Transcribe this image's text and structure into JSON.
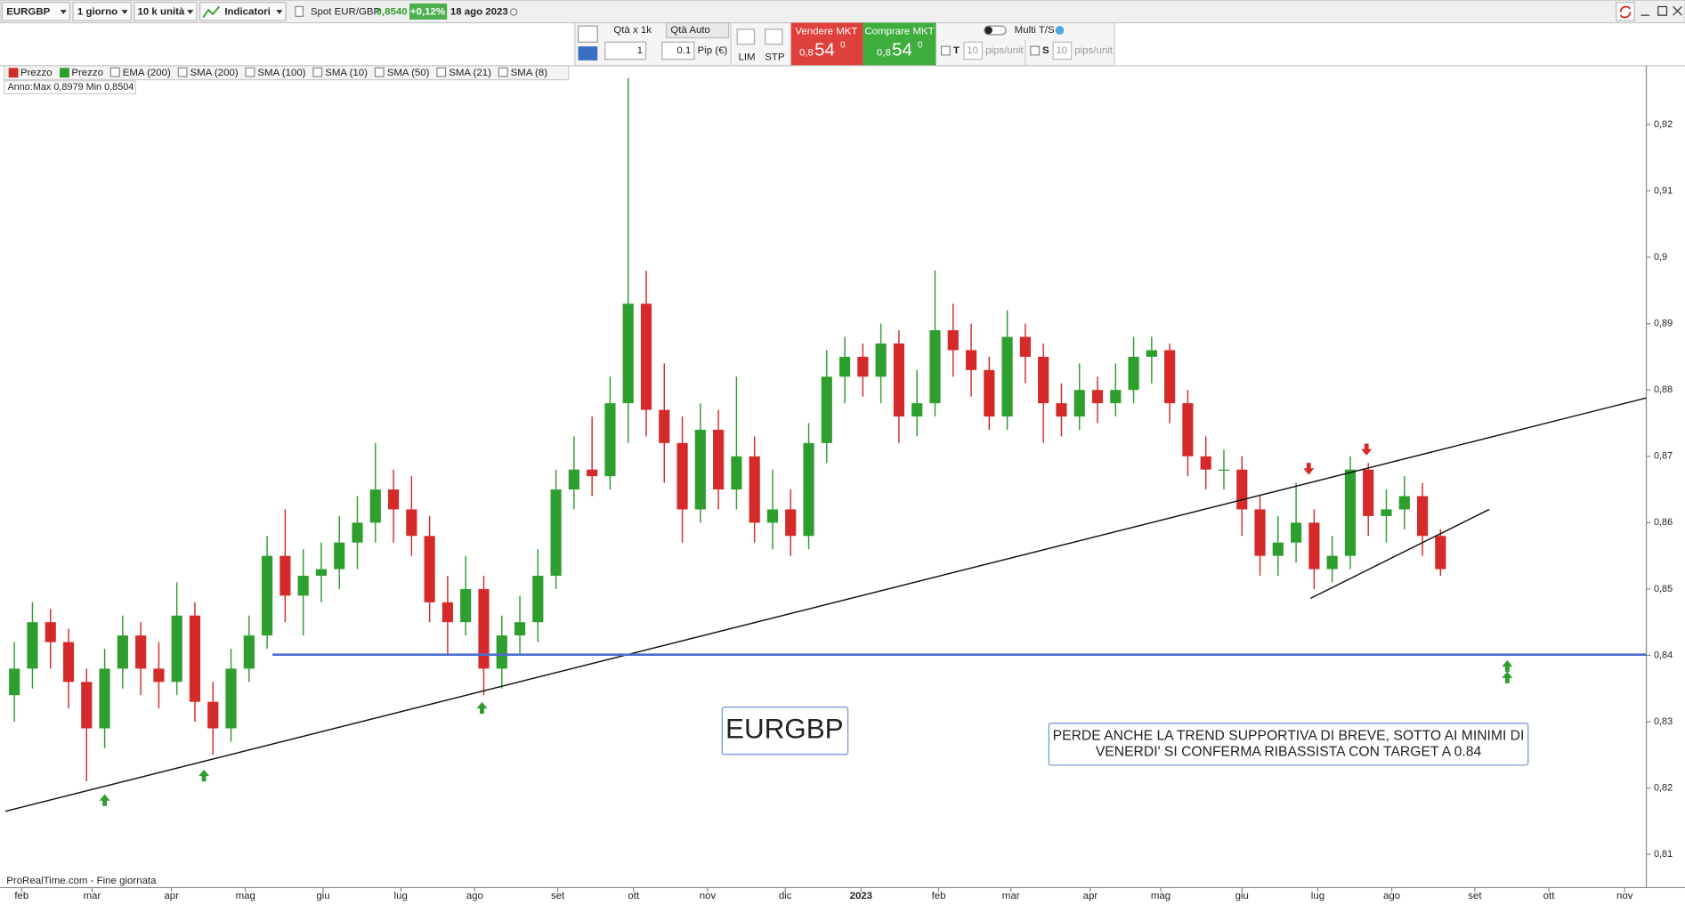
{
  "ui": {
    "symbol": "EURGBP",
    "period": "1 giorno",
    "units": "10 k unità",
    "indicators": "Indicatori",
    "spot_label": "Spot EUR/GBP",
    "spot_price": "0,8540",
    "spot_change": "+0,12%",
    "date": "18 ago 2023",
    "order": {
      "qty_label": "Qtà  x 1k",
      "qty_auto": "Qtà Auto",
      "qty": "1",
      "pip": "0.1",
      "pip_label": "Pip (€)",
      "lim": "LIM",
      "stp": "STP",
      "sell": "Vendere MKT",
      "buy": "Comprare MKT",
      "price_small": "0,8",
      "price_big": "54",
      "price_sup": "0",
      "multi": "Multi T/S",
      "t": "T",
      "s": "S",
      "ten": "10",
      "pips_unit": "pips/unit"
    },
    "legend": [
      "Prezzo",
      "Prezzo",
      "EMA (200)",
      "SMA (200)",
      "SMA (100)",
      "SMA (10)",
      "SMA (50)",
      "SMA (21)",
      "SMA (8)"
    ],
    "range_info": "Anno:Max 0,8979 Min 0,8504",
    "footer": "ProRealTime.com - Fine giornata"
  },
  "chart_data": {
    "type": "candlestick",
    "title": "EURGBP",
    "annotation": [
      "PERDE ANCHE LA TREND SUPPORTIVA DI BREVE, SOTTO AI MINIMI DI",
      "VENERDI' SI CONFERMA RIBASSISTA CON TARGET A 0.84"
    ],
    "up_color": "#2e9e2e",
    "down_color": "#d42a2a",
    "x": [
      0.5,
      1.5,
      2.5,
      3.5,
      4.5,
      5.5,
      6.5,
      7.5,
      8.5,
      9.5,
      10.5,
      11.5,
      12.5,
      13.5,
      14.5,
      15.5,
      16.5,
      17.5,
      18.5,
      19.5,
      20.5,
      21.5,
      22.5,
      23.5,
      24.5,
      25.5,
      26.5,
      27.5,
      28.5,
      29.5,
      30.5,
      31.5,
      32.5,
      33.5,
      34.5,
      35.5,
      36.5,
      37.5,
      38.5,
      39.5,
      40.5,
      41.5,
      42.5,
      43.5,
      44.5,
      45.5,
      46.5,
      47.5,
      48.5,
      49.5,
      50.5,
      51.5,
      52.5,
      53.5,
      54.5,
      55.5,
      56.5,
      57.5,
      58.5,
      59.5,
      60.5,
      61.5,
      62.5,
      63.5,
      64.5,
      65.5,
      66.5,
      67.5,
      68.5,
      69.5,
      70.5,
      71.5,
      72.5,
      73.5,
      74.5,
      75.5,
      76.5,
      77.5,
      78.5,
      79.5
    ],
    "open": [
      0.834,
      0.838,
      0.845,
      0.842,
      0.836,
      0.829,
      0.838,
      0.843,
      0.838,
      0.836,
      0.846,
      0.833,
      0.829,
      0.838,
      0.843,
      0.855,
      0.849,
      0.852,
      0.853,
      0.857,
      0.86,
      0.865,
      0.862,
      0.858,
      0.848,
      0.845,
      0.85,
      0.838,
      0.843,
      0.845,
      0.852,
      0.865,
      0.868,
      0.867,
      0.878,
      0.893,
      0.877,
      0.872,
      0.862,
      0.874,
      0.865,
      0.87,
      0.86,
      0.862,
      0.858,
      0.872,
      0.882,
      0.885,
      0.882,
      0.887,
      0.876,
      0.878,
      0.889,
      0.886,
      0.883,
      0.876,
      0.888,
      0.885,
      0.878,
      0.876,
      0.88,
      0.878,
      0.88,
      0.885,
      0.886,
      0.878,
      0.87,
      0.868,
      0.868,
      0.862,
      0.855,
      0.857,
      0.86,
      0.853,
      0.855,
      0.868,
      0.861,
      0.862,
      0.864,
      0.858
    ],
    "high": [
      0.842,
      0.848,
      0.847,
      0.844,
      0.838,
      0.841,
      0.846,
      0.845,
      0.842,
      0.851,
      0.848,
      0.836,
      0.841,
      0.846,
      0.858,
      0.862,
      0.856,
      0.857,
      0.861,
      0.864,
      0.872,
      0.868,
      0.867,
      0.861,
      0.852,
      0.855,
      0.852,
      0.846,
      0.849,
      0.856,
      0.868,
      0.873,
      0.876,
      0.882,
      0.927,
      0.898,
      0.884,
      0.876,
      0.878,
      0.877,
      0.882,
      0.873,
      0.868,
      0.865,
      0.875,
      0.886,
      0.888,
      0.887,
      0.89,
      0.889,
      0.883,
      0.898,
      0.893,
      0.89,
      0.885,
      0.892,
      0.89,
      0.887,
      0.881,
      0.884,
      0.882,
      0.884,
      0.888,
      0.888,
      0.887,
      0.88,
      0.873,
      0.871,
      0.87,
      0.864,
      0.861,
      0.866,
      0.862,
      0.858,
      0.87,
      0.869,
      0.865,
      0.867,
      0.866,
      0.859
    ],
    "low": [
      0.83,
      0.835,
      0.838,
      0.832,
      0.821,
      0.826,
      0.835,
      0.834,
      0.832,
      0.834,
      0.83,
      0.825,
      0.827,
      0.836,
      0.841,
      0.845,
      0.843,
      0.848,
      0.85,
      0.853,
      0.857,
      0.857,
      0.855,
      0.845,
      0.84,
      0.843,
      0.834,
      0.835,
      0.84,
      0.842,
      0.85,
      0.862,
      0.864,
      0.865,
      0.872,
      0.873,
      0.866,
      0.857,
      0.86,
      0.862,
      0.862,
      0.857,
      0.856,
      0.855,
      0.856,
      0.869,
      0.878,
      0.879,
      0.878,
      0.872,
      0.873,
      0.876,
      0.882,
      0.879,
      0.874,
      0.874,
      0.881,
      0.872,
      0.873,
      0.874,
      0.875,
      0.876,
      0.878,
      0.881,
      0.875,
      0.867,
      0.865,
      0.865,
      0.858,
      0.852,
      0.852,
      0.854,
      0.85,
      0.851,
      0.853,
      0.858,
      0.857,
      0.859,
      0.855,
      0.852
    ],
    "close": [
      0.838,
      0.845,
      0.842,
      0.836,
      0.829,
      0.838,
      0.843,
      0.838,
      0.836,
      0.846,
      0.833,
      0.829,
      0.838,
      0.843,
      0.855,
      0.849,
      0.852,
      0.853,
      0.857,
      0.86,
      0.865,
      0.862,
      0.858,
      0.848,
      0.845,
      0.85,
      0.838,
      0.843,
      0.845,
      0.852,
      0.865,
      0.868,
      0.867,
      0.878,
      0.893,
      0.877,
      0.872,
      0.862,
      0.874,
      0.865,
      0.87,
      0.86,
      0.862,
      0.858,
      0.872,
      0.882,
      0.885,
      0.882,
      0.887,
      0.876,
      0.878,
      0.889,
      0.886,
      0.883,
      0.876,
      0.888,
      0.885,
      0.878,
      0.876,
      0.88,
      0.878,
      0.88,
      0.885,
      0.886,
      0.878,
      0.87,
      0.868,
      0.868,
      0.862,
      0.855,
      0.857,
      0.86,
      0.853,
      0.855,
      0.868,
      0.861,
      0.862,
      0.864,
      0.858,
      0.853
    ],
    "xlim": [
      0,
      90.9
    ],
    "ylim": [
      0.805,
      0.9287
    ],
    "xticks": [
      {
        "value": 0.9,
        "label": "feb"
      },
      {
        "value": 4.8,
        "label": "mar"
      },
      {
        "value": 9.2,
        "label": "apr"
      },
      {
        "value": 13.3,
        "label": "mag"
      },
      {
        "value": 17.6,
        "label": "giu"
      },
      {
        "value": 21.9,
        "label": "lug"
      },
      {
        "value": 26,
        "label": "ago"
      },
      {
        "value": 30.6,
        "label": "set"
      },
      {
        "value": 34.8,
        "label": "ott"
      },
      {
        "value": 38.9,
        "label": "nov"
      },
      {
        "value": 43.2,
        "label": "dic"
      },
      {
        "value": 47.4,
        "label": "2023"
      },
      {
        "value": 51.7,
        "label": "feb"
      },
      {
        "value": 55.7,
        "label": "mar"
      },
      {
        "value": 60.1,
        "label": "apr"
      },
      {
        "value": 64,
        "label": "mag"
      },
      {
        "value": 68.5,
        "label": "giu"
      },
      {
        "value": 72.7,
        "label": "lug"
      },
      {
        "value": 76.8,
        "label": "ago"
      },
      {
        "value": 81.4,
        "label": "set"
      },
      {
        "value": 85.5,
        "label": "ott"
      },
      {
        "value": 89.7,
        "label": "nov"
      }
    ],
    "yticks": [
      {
        "value": 0.81,
        "label": "0,81"
      },
      {
        "value": 0.82,
        "label": "0,82"
      },
      {
        "value": 0.83,
        "label": "0,83"
      },
      {
        "value": 0.84,
        "label": "0,84"
      },
      {
        "value": 0.85,
        "label": "0,85"
      },
      {
        "value": 0.86,
        "label": "0,86"
      },
      {
        "value": 0.87,
        "label": "0,87"
      },
      {
        "value": 0.88,
        "label": "0,88"
      },
      {
        "value": 0.89,
        "label": "0,89"
      },
      {
        "value": 0.9,
        "label": "0,9"
      },
      {
        "value": 0.91,
        "label": "0,91"
      },
      {
        "value": 0.92,
        "label": "0,92"
      }
    ],
    "lines": [
      {
        "x": [
          0,
          90.9
        ],
        "y": [
          0.8165,
          0.8788
        ],
        "color": "#111111"
      },
      {
        "x": [
          72.3,
          82.2
        ],
        "y": [
          0.8486,
          0.862
        ],
        "color": "#111111"
      },
      {
        "x": [
          14.8,
          90.9
        ],
        "y": [
          0.8401,
          0.8401
        ],
        "color": "#4a6fd0"
      }
    ],
    "arrows": [
      {
        "x": 5.5,
        "y": 0.8181,
        "dir": "up",
        "color": "#2e9e2e"
      },
      {
        "x": 11,
        "y": 0.8218,
        "dir": "up",
        "color": "#2e9e2e"
      },
      {
        "x": 26.4,
        "y": 0.832,
        "dir": "up",
        "color": "#2e9e2e"
      },
      {
        "x": 83.2,
        "y": 0.8383,
        "dir": "up",
        "color": "#2e9e2e"
      },
      {
        "x": 83.2,
        "y": 0.8366,
        "dir": "up",
        "color": "#2e9e2e"
      },
      {
        "x": 72.2,
        "y": 0.8682,
        "dir": "down",
        "color": "#d42a2a"
      },
      {
        "x": 75.4,
        "y": 0.8711,
        "dir": "down",
        "color": "#d42a2a"
      }
    ]
  }
}
